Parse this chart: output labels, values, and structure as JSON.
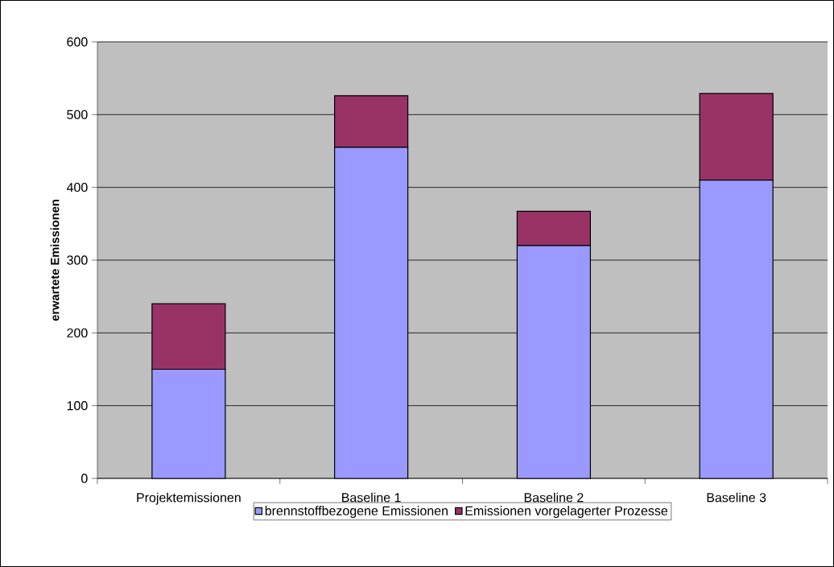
{
  "chart_data": {
    "type": "bar",
    "stacked": true,
    "ylabel": "erwartete Emissionen",
    "categories": [
      "Projektemissionen",
      "Baseline 1",
      "Baseline 2",
      "Baseline 3"
    ],
    "series": [
      {
        "name": "brennstoffbezogene Emissionen",
        "color": "#9999ff",
        "values": [
          150,
          455,
          320,
          410
        ]
      },
      {
        "name": "Emissionen vorgelagerter Prozesse",
        "color": "#993366",
        "values": [
          90,
          71,
          47,
          119
        ]
      }
    ],
    "ylim": [
      0,
      600
    ],
    "yticks": [
      0,
      100,
      200,
      300,
      400,
      500,
      600
    ],
    "grid": "y",
    "legend": "bottom"
  }
}
